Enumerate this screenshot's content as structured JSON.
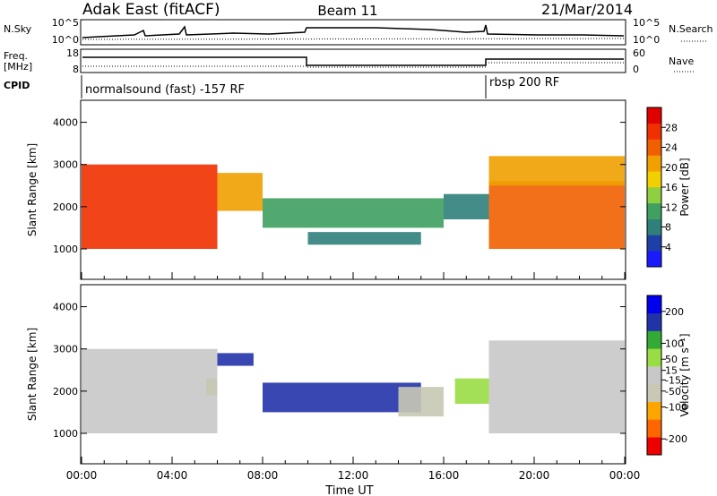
{
  "header": {
    "station": "Adak East (fitACF)",
    "beam": "Beam 11",
    "date": "21/Mar/2014"
  },
  "strip_labels": {
    "nsky": "N.Sky",
    "nsearch": "N.Search",
    "freq_line1": "Freq.",
    "freq_line2": "[MHz]",
    "nave": "Nave",
    "cpid": "CPID",
    "nsky_ticks": [
      "10^5",
      "10^0"
    ],
    "nsearch_ticks": [
      "10^5",
      "10^0"
    ],
    "freq_ticks": [
      "18",
      "8"
    ],
    "nave_ticks": [
      "60",
      "0"
    ]
  },
  "cpid_segments": [
    {
      "label": "normalsound (fast) -157 RF",
      "start_h": 0,
      "end_h": 18
    },
    {
      "label": "rbsp 200 RF",
      "start_h": 18,
      "end_h": 24
    }
  ],
  "colors": {
    "power_scale": [
      "#1a1aff",
      "#1f3fa8",
      "#2f7f7a",
      "#3fa060",
      "#8fd040",
      "#f0d000",
      "#f0a000",
      "#f06000",
      "#f03000",
      "#e00000"
    ],
    "velocity_scale": [
      "#ee0000",
      "#ff6600",
      "#ffa500",
      "#c8c8b4",
      "#c8c8c8",
      "#99dd44",
      "#33aa33",
      "#2233aa",
      "#0000ee"
    ]
  },
  "chart_data": [
    {
      "type": "heatmap",
      "panel": "power",
      "ylabel": "Slant Range [km]",
      "xlim_hours": [
        0,
        24
      ],
      "ylim_km": [
        300,
        4500
      ],
      "y_ticks": [
        "1000",
        "2000",
        "3000",
        "4000"
      ],
      "colorbar": {
        "label": "Power [dB]",
        "ticks": [
          "4",
          "8",
          "12",
          "16",
          "20",
          "24",
          "28"
        ],
        "range": [
          0,
          32
        ]
      },
      "echo_regions": [
        {
          "t_start": 0.0,
          "t_end": 6.0,
          "r_low": 1000,
          "r_high": 3000,
          "value": 26
        },
        {
          "t_start": 6.0,
          "t_end": 8.0,
          "r_low": 1900,
          "r_high": 2800,
          "value": 20
        },
        {
          "t_start": 8.0,
          "t_end": 16.0,
          "r_low": 1500,
          "r_high": 2200,
          "value": 10
        },
        {
          "t_start": 10.0,
          "t_end": 15.0,
          "r_low": 1100,
          "r_high": 1400,
          "value": 8
        },
        {
          "t_start": 16.0,
          "t_end": 18.0,
          "r_low": 1700,
          "r_high": 2300,
          "value": 8
        },
        {
          "t_start": 18.0,
          "t_end": 24.0,
          "r_low": 1000,
          "r_high": 2600,
          "value": 24
        },
        {
          "t_start": 18.0,
          "t_end": 24.0,
          "r_low": 2500,
          "r_high": 3200,
          "value": 20
        }
      ]
    },
    {
      "type": "heatmap",
      "panel": "velocity",
      "ylabel": "Slant Range [km]",
      "xlabel": "Time UT",
      "xlim_hours": [
        0,
        24
      ],
      "ylim_km": [
        300,
        4500
      ],
      "y_ticks": [
        "1000",
        "2000",
        "3000",
        "4000"
      ],
      "x_ticks": [
        "00:00",
        "04:00",
        "08:00",
        "12:00",
        "16:00",
        "20:00",
        "00:00"
      ],
      "colorbar": {
        "label": "Velocity [m s⁻¹]",
        "ticks": [
          "200",
          "100",
          "50",
          "15",
          "-15",
          "-50",
          "-100",
          "-200"
        ],
        "range": [
          -250,
          250
        ]
      },
      "echo_regions": [
        {
          "t_start": 0.0,
          "t_end": 6.0,
          "r_low": 1000,
          "r_high": 3000,
          "value": 0
        },
        {
          "t_start": 5.5,
          "t_end": 6.0,
          "r_low": 1900,
          "r_high": 2300,
          "value": -60
        },
        {
          "t_start": 6.0,
          "t_end": 7.6,
          "r_low": 2600,
          "r_high": 2900,
          "value": 180
        },
        {
          "t_start": 8.0,
          "t_end": 15.0,
          "r_low": 1500,
          "r_high": 2200,
          "value": 180
        },
        {
          "t_start": 14.0,
          "t_end": 16.0,
          "r_low": 1400,
          "r_high": 2100,
          "value": -60
        },
        {
          "t_start": 16.5,
          "t_end": 18.0,
          "r_low": 1700,
          "r_high": 2300,
          "value": 60
        },
        {
          "t_start": 18.0,
          "t_end": 24.0,
          "r_low": 1000,
          "r_high": 3200,
          "value": 0
        }
      ]
    }
  ]
}
